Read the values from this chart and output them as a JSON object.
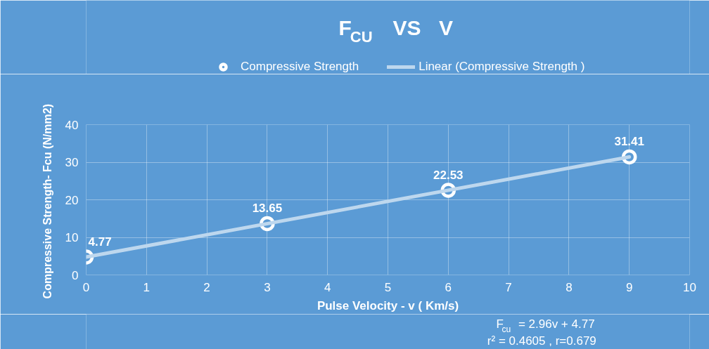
{
  "chart_data": {
    "type": "scatter",
    "title": "F$_{CU}$  VS  V",
    "xlabel": "Pulse Velocity - v ( Km/s)",
    "ylabel": "Compressive  Strength- Fcu (N/mm2)",
    "x": [
      0,
      3,
      6,
      9
    ],
    "series": [
      {
        "name": "Compressive Strength",
        "marker": "circle",
        "color": "#ffffff",
        "values": [
          4.77,
          13.65,
          22.53,
          31.41
        ],
        "value_labels": [
          "4.77",
          "13.65",
          "22.53",
          "31.41"
        ]
      },
      {
        "name": "Linear (Compressive Strength )",
        "type": "line",
        "line_style": "solid",
        "color": "#bdd7ee",
        "x": [
          0,
          9
        ],
        "values": [
          4.77,
          31.41
        ]
      }
    ],
    "xlim": [
      0,
      10
    ],
    "xticks": [
      0,
      1,
      2,
      3,
      4,
      5,
      6,
      7,
      8,
      9,
      10
    ],
    "ylim": [
      0,
      40
    ],
    "yticks": [
      0,
      10,
      20,
      30,
      40
    ],
    "grid": true,
    "legend": "top",
    "annotations": [
      "F$_{cu}$ = 2.96v + 4.77",
      "r² = 0.4605 , r=0.679"
    ]
  }
}
